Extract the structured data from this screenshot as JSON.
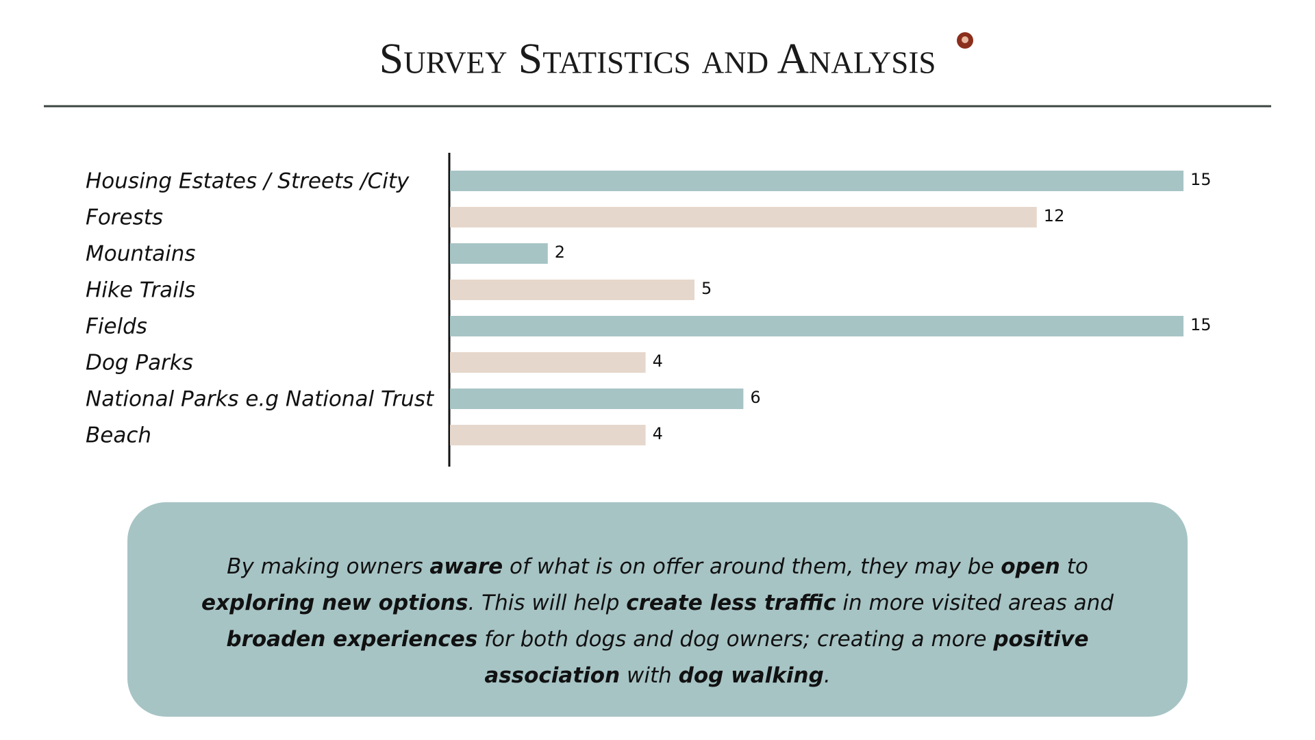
{
  "chart_data": {
    "type": "barh",
    "title": "Survey Statistics and Analysis",
    "categories": [
      "Housing Estates / Streets /City",
      "Forests",
      "Mountains",
      "Hike Trails",
      "Fields",
      "Dog Parks",
      "National Parks e.g National Trust",
      "Beach"
    ],
    "values": [
      15,
      12,
      2,
      5,
      15,
      4,
      6,
      4
    ],
    "colors": [
      "#a7c4c5",
      "#e6d7cc"
    ],
    "xlim": [
      0,
      15
    ]
  },
  "note": {
    "segments": [
      {
        "text": "By making owners ",
        "bold": false
      },
      {
        "text": "aware",
        "bold": true
      },
      {
        "text": " of what is on offer around them, they may be ",
        "bold": false
      },
      {
        "text": "open",
        "bold": true
      },
      {
        "text": " to ",
        "bold": false
      },
      {
        "text": "exploring new options",
        "bold": true
      },
      {
        "text": ". This will help ",
        "bold": false
      },
      {
        "text": "create less traffic",
        "bold": true
      },
      {
        "text": " in more visited areas and ",
        "bold": false
      },
      {
        "text": "broaden experiences",
        "bold": true
      },
      {
        "text": " for both dogs and dog owners; creating a more ",
        "bold": false
      },
      {
        "text": "positive association",
        "bold": true
      },
      {
        "text": " with ",
        "bold": false
      },
      {
        "text": "dog walking",
        "bold": true
      },
      {
        "text": ".",
        "bold": false
      }
    ]
  }
}
